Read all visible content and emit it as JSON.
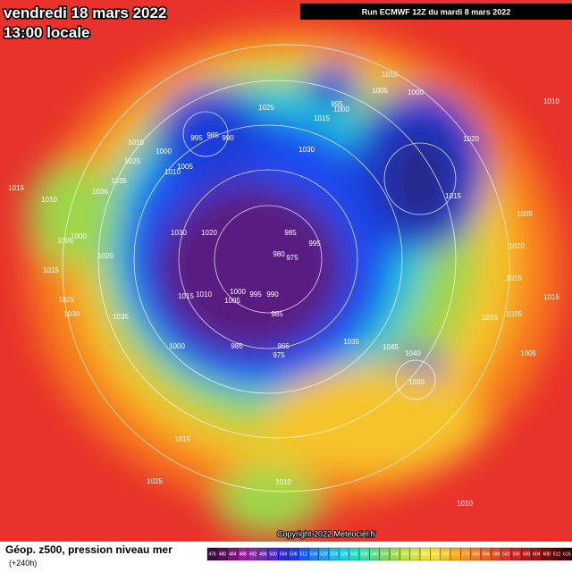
{
  "header": {
    "date": "vendredi 18 mars 2022",
    "time": "13:00 locale",
    "run": "Run ECMWF 12Z du mardi 8 mars 2022"
  },
  "pressure_labels": [
    "1015",
    "995",
    "985",
    "990",
    "1025",
    "995",
    "1000",
    "1010",
    "1005",
    "1000",
    "1015",
    "1030",
    "1020",
    "1015",
    "1000",
    "1005",
    "1010",
    "1025",
    "1035",
    "1036",
    "1015",
    "1010",
    "1030",
    "1020",
    "985",
    "995",
    "980",
    "975",
    "1000",
    "1005",
    "1020",
    "1015",
    "1025",
    "1030",
    "1035",
    "1015",
    "1010",
    "1000",
    "1005",
    "995",
    "990",
    "985",
    "1000",
    "985",
    "965",
    "975",
    "1035",
    "1045",
    "1040",
    "1030",
    "1015",
    "1025",
    "1010",
    "1005",
    "1020",
    "1015",
    "1015",
    "1025",
    "1005",
    "1010",
    "1015",
    "1010",
    "1005"
  ],
  "copyright": "Copyright 2022 Meteociel.fr",
  "footer": {
    "title": "Géop. z500, pression niveau mer",
    "lead": "(+240h)"
  },
  "colorbar": [
    476,
    480,
    484,
    488,
    492,
    496,
    500,
    504,
    508,
    512,
    516,
    520,
    524,
    528,
    532,
    536,
    540,
    544,
    548,
    552,
    556,
    560,
    564,
    568,
    572,
    576,
    580,
    584,
    588,
    592,
    596,
    600,
    604,
    608,
    612,
    616
  ]
}
